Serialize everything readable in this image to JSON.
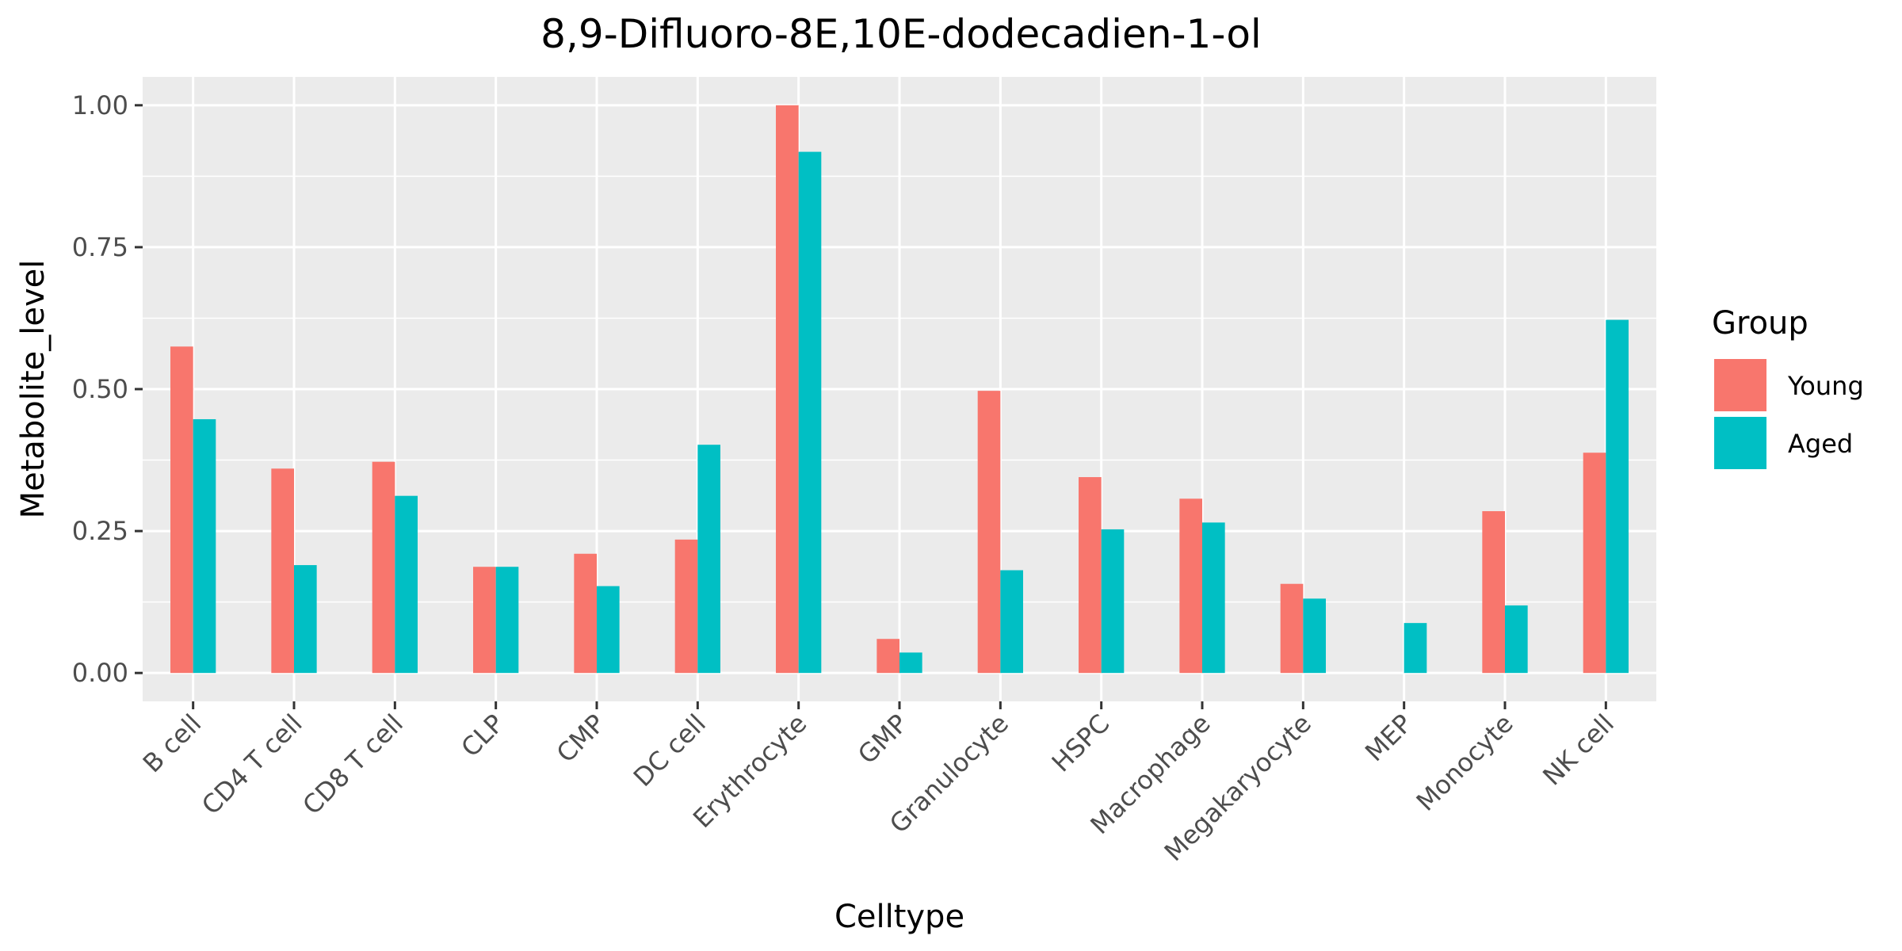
{
  "chart_data": {
    "type": "bar",
    "title": "8,9-Difluoro-8E,10E-dodecadien-1-ol",
    "xlabel": "Celltype",
    "ylabel": "Metabolite_level",
    "ylim": [
      -0.05,
      1.05
    ],
    "yticks": [
      0.0,
      0.25,
      0.5,
      0.75,
      1.0
    ],
    "ytick_labels": [
      "0.00",
      "0.25",
      "0.50",
      "0.75",
      "1.00"
    ],
    "grid": true,
    "legend": {
      "title": "Group",
      "position": "right"
    },
    "categories": [
      "B cell",
      "CD4 T cell",
      "CD8 T cell",
      "CLP",
      "CMP",
      "DC cell",
      "Erythrocyte",
      "GMP",
      "Granulocyte",
      "HSPC",
      "Macrophage",
      "Megakaryocyte",
      "MEP",
      "Monocyte",
      "NK cell"
    ],
    "series": [
      {
        "name": "Young",
        "color": "#F8766D",
        "values": [
          0.575,
          0.36,
          0.372,
          0.187,
          0.21,
          0.235,
          1.0,
          0.06,
          0.497,
          0.345,
          0.307,
          0.157,
          0.0,
          0.285,
          0.388
        ]
      },
      {
        "name": "Aged",
        "color": "#00BFC4",
        "values": [
          0.447,
          0.19,
          0.312,
          0.187,
          0.153,
          0.402,
          0.918,
          0.036,
          0.181,
          0.253,
          0.265,
          0.131,
          0.088,
          0.119,
          0.622
        ]
      }
    ]
  }
}
